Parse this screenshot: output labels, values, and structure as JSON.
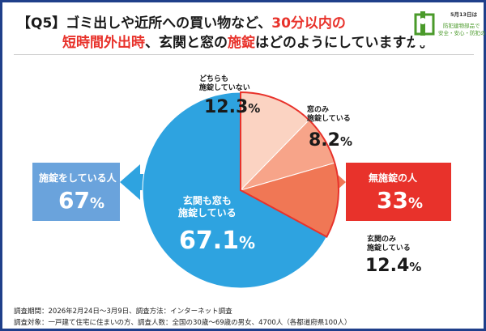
{
  "title": {
    "prefix": "【Q5】ゴミ出しや近所への買い物など、",
    "highlight": "30分以内の",
    "line2_red": "短時間外出時",
    "line2_mid": "、玄関と窓の",
    "line2_red2": "施錠",
    "line2_end": "はどのようにしていますか。"
  },
  "logo": {
    "date": "5月13日は",
    "line1": "防犯建物部品で",
    "line2": "安全・安心・防犯の日"
  },
  "chart_data": {
    "type": "pie",
    "slices": [
      {
        "label_line1": "どちらも",
        "label_line2": "施錠していない",
        "value": 12.3,
        "value_text": "12.3",
        "color": "#fbd3c2"
      },
      {
        "label_line1": "窓のみ",
        "label_line2": "施錠している",
        "value": 8.2,
        "value_text": "8.2",
        "color": "#f7a489"
      },
      {
        "label_line1": "玄関のみ",
        "label_line2": "施錠している",
        "value": 12.4,
        "value_text": "12.4",
        "color": "#f07755"
      },
      {
        "label_line1": "玄関も窓も",
        "label_line2": "施錠している",
        "value": 67.1,
        "value_text": "67.1",
        "color": "#2ea3e0"
      }
    ],
    "pct_sign": "%"
  },
  "summary": {
    "locked_label": "施錠をしている人",
    "locked_value": "67",
    "unlocked_label": "無施錠の人",
    "unlocked_value": "33",
    "pct_sign": "%"
  },
  "footer": {
    "line1": "調査期間：2026年2月24日～3月9日、調査方法：インターネット調査",
    "line2": "調査対象：一戸建て住宅に住まいの方、調査人数：全国の30歳～69歳の男女、4700人（各都道府県100人）"
  },
  "colors": {
    "border": "#1f3f8a",
    "locked_box": "#6aa3dc",
    "unlocked_box": "#e8322b",
    "arrow_blue": "#2ea3e0",
    "arrow_orange": "#f07755",
    "outline_red": "#e8322b"
  }
}
